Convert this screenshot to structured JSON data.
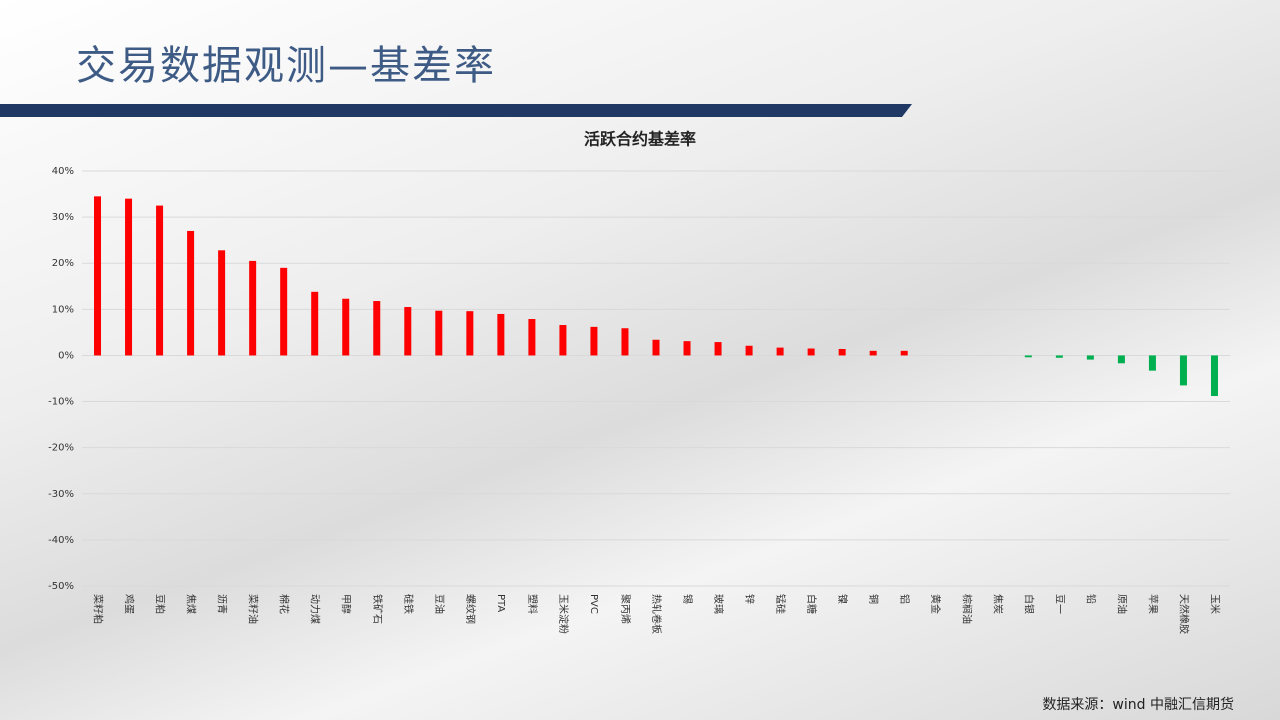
{
  "header": {
    "title": "交易数据观测—基差率"
  },
  "footer": {
    "source": "数据来源：wind 中融汇信期货"
  },
  "chart_data": {
    "type": "bar",
    "title": "活跃合约基差率",
    "categories": [
      "菜籽粕",
      "鸡蛋",
      "豆粕",
      "焦煤",
      "沥青",
      "菜籽油",
      "棉花",
      "动力煤",
      "甲醇",
      "铁矿石",
      "硅铁",
      "豆油",
      "螺纹钢",
      "PTA",
      "塑料",
      "玉米淀粉",
      "PVC",
      "聚丙烯",
      "热轧卷板",
      "锡",
      "玻璃",
      "锌",
      "锰硅",
      "白糖",
      "镍",
      "铜",
      "铝",
      "黄金",
      "棕榈油",
      "焦炭",
      "白银",
      "豆一",
      "铅",
      "原油",
      "苹果",
      "天然橡胶",
      "玉米"
    ],
    "values": [
      34.5,
      34,
      32.5,
      27,
      22.8,
      20.5,
      19,
      13.8,
      12.3,
      11.8,
      10.5,
      9.7,
      9.6,
      9,
      7.9,
      6.6,
      6.2,
      5.9,
      3.4,
      3.1,
      2.9,
      2.1,
      1.7,
      1.5,
      1.4,
      1.0,
      1.0,
      0,
      0,
      0,
      -0.4,
      -0.5,
      -0.9,
      -1.7,
      -3.3,
      -6.5,
      -8.8
    ],
    "color": "#ff0000",
    "negative_color": "#00b050",
    "ylim": [
      -50,
      40
    ],
    "yticks": [
      {
        "value": -50,
        "label": "-50%"
      },
      {
        "value": -40,
        "label": "-40%"
      },
      {
        "value": -30,
        "label": "-30%"
      },
      {
        "value": -20,
        "label": "-20%"
      },
      {
        "value": -10,
        "label": "-10%"
      },
      {
        "value": 0,
        "label": "0%"
      },
      {
        "value": 10,
        "label": "10%"
      },
      {
        "value": 20,
        "label": "20%"
      },
      {
        "value": 30,
        "label": "30%"
      },
      {
        "value": 40,
        "label": "40%"
      }
    ],
    "grid": true
  }
}
